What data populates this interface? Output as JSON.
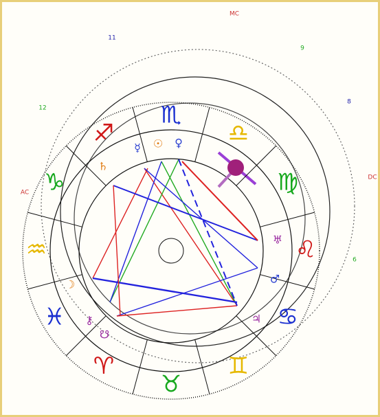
{
  "angles": {
    "mc": "MC",
    "ac": "AC",
    "dc": "DC"
  },
  "houses": [
    "11",
    "9",
    "12",
    "8",
    "6"
  ],
  "signs": [
    "♒",
    "♓",
    "♈",
    "♉",
    "♊",
    "♋",
    "♌",
    "♍",
    "♎",
    "♏",
    "♐",
    "♑"
  ],
  "planets": [
    "☿",
    "☉",
    "♀",
    "♄",
    "♅",
    "♂",
    "♃",
    "☽",
    "⚷",
    "☋"
  ]
}
